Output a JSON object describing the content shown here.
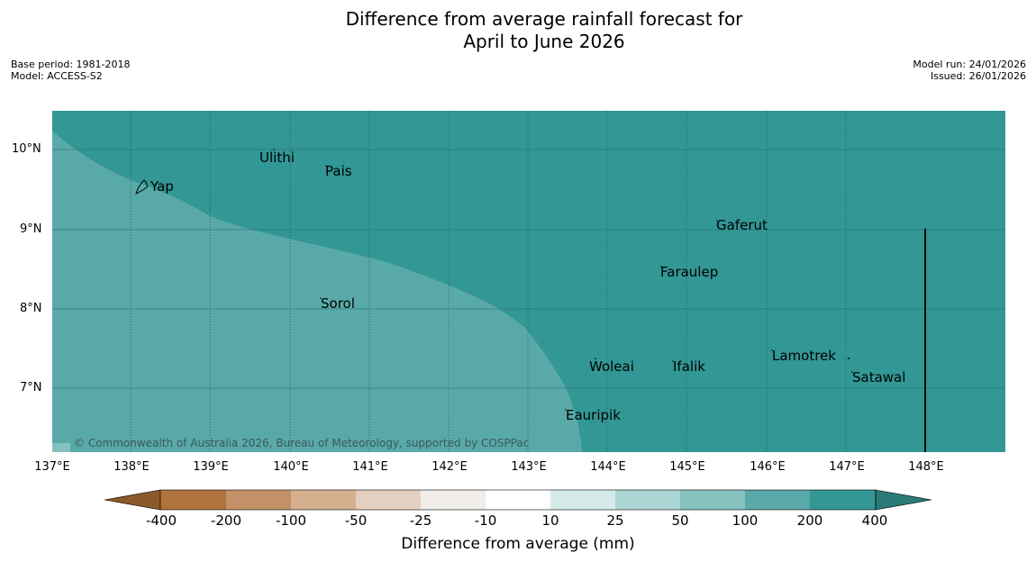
{
  "title_line1": "Difference from average rainfall forecast for",
  "title_line2": "April to June 2026",
  "base_period": "Base period: 1981-2018",
  "model": "Model: ACCESS-S2",
  "model_run": "Model run: 24/01/2026",
  "issued": "Issued: 26/01/2026",
  "copyright": "© Commonwealth of Australia 2026, Bureau of Meteorology, supported by COSPPac",
  "lat_labels": [
    "10°N",
    "9°N",
    "8°N",
    "7°N"
  ],
  "lon_labels": [
    "137°E",
    "138°E",
    "139°E",
    "140°E",
    "141°E",
    "142°E",
    "143°E",
    "144°E",
    "145°E",
    "146°E",
    "147°E",
    "148°E"
  ],
  "places": [
    "Yap",
    "Ulithi",
    "Pais",
    "Gaferut",
    "Faraulep",
    "Sorol",
    "Woleai",
    "Ifalik",
    "Lamotrek",
    "Satawal",
    "Eauripik"
  ],
  "colorbar": {
    "title": "Difference from average (mm)",
    "labels": [
      "-400",
      "-200",
      "-100",
      "-50",
      "-25",
      "-10",
      "10",
      "25",
      "50",
      "100",
      "200",
      "400"
    ],
    "colors": [
      "#b0733b",
      "#c29168",
      "#d4b08f",
      "#e4d0c1",
      "#f1ede8",
      "#ffffff",
      "#d5ebe9",
      "#abd6d4",
      "#84c1bf",
      "#5aa9a9",
      "#329795"
    ],
    "under_color": "#8a5a2b",
    "over_color": "#2a7a78"
  },
  "map_colors": {
    "wetter": "#329795",
    "slightly_wetter": "#5aa9a9"
  }
}
